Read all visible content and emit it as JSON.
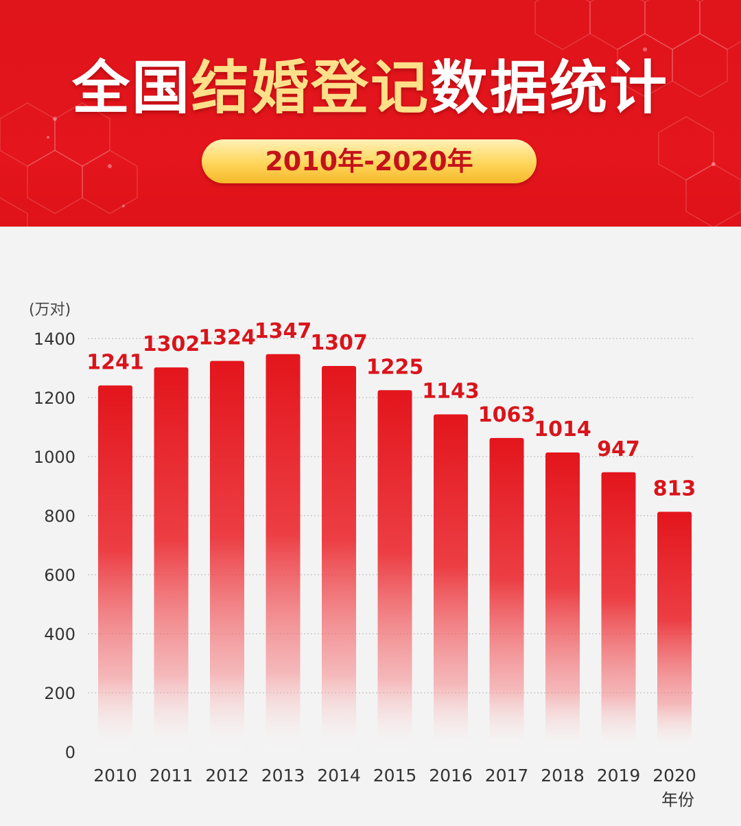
{
  "header": {
    "title_parts": [
      {
        "text": "全国",
        "style": "white"
      },
      {
        "text": "结婚登记",
        "style": "yellow"
      },
      {
        "text": "数据统计",
        "style": "white"
      }
    ],
    "subtitle": "2010年-2020年"
  },
  "colors": {
    "header_red": "#e0141b",
    "title_yellow": "#ffe08a",
    "bar_red": "#e3151c",
    "label_red": "#d9141b",
    "axis_text": "#333333"
  },
  "chart_data": {
    "type": "bar",
    "ylabel": "(万对)",
    "xlabel": "年份",
    "categories": [
      "2010",
      "2011",
      "2012",
      "2013",
      "2014",
      "2015",
      "2016",
      "2017",
      "2018",
      "2019",
      "2020"
    ],
    "values": [
      1241,
      1302,
      1324,
      1347,
      1307,
      1225,
      1143,
      1063,
      1014,
      947,
      813
    ],
    "ylim": [
      0,
      1400
    ],
    "yticks": [
      0,
      200,
      400,
      600,
      800,
      1000,
      1200,
      1400
    ],
    "grid": true,
    "data_labels": true
  }
}
